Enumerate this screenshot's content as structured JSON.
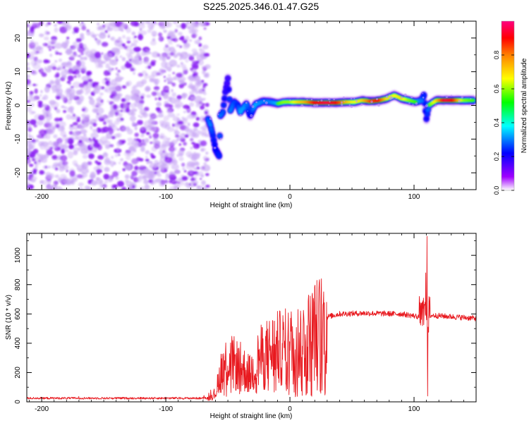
{
  "title": "S225.2025.346.01.47.G25",
  "chart_data": [
    {
      "type": "heatmap",
      "xlabel": "Height of straight line (km)",
      "ylabel": "Frequency (Hz)",
      "xlim": [
        -212,
        150
      ],
      "ylim": [
        -25,
        25
      ],
      "xticks": [
        -200,
        -100,
        0,
        100
      ],
      "xtick_labels": [
        "-200",
        "-100",
        "0",
        "100"
      ],
      "yticks": [
        -20,
        -10,
        0,
        10,
        20
      ],
      "ytick_labels": [
        "-20",
        "-10",
        "0",
        "10",
        "20"
      ],
      "noise_region_x": [
        -212,
        -66
      ],
      "ridge": [
        {
          "x": -66,
          "y": -4,
          "a": 0.45
        },
        {
          "x": -64,
          "y": -6,
          "a": 0.5
        },
        {
          "x": -62,
          "y": -9,
          "a": 0.4
        },
        {
          "x": -60,
          "y": -13,
          "a": 0.35
        },
        {
          "x": -57,
          "y": -15,
          "a": 0.4
        },
        {
          "x": -56,
          "y": -3,
          "a": 0.5
        },
        {
          "x": -54,
          "y": -2,
          "a": 0.45
        },
        {
          "x": -52,
          "y": 4,
          "a": 0.3
        },
        {
          "x": -50,
          "y": 8,
          "a": 0.25
        },
        {
          "x": -48,
          "y": -1.5,
          "a": 0.5
        },
        {
          "x": -45,
          "y": 1,
          "a": 0.45
        },
        {
          "x": -42,
          "y": 0,
          "a": 0.4
        },
        {
          "x": -40,
          "y": -2,
          "a": 0.55
        },
        {
          "x": -35,
          "y": 0.5,
          "a": 0.5
        },
        {
          "x": -32,
          "y": -3,
          "a": 0.35
        },
        {
          "x": -28,
          "y": 0.2,
          "a": 0.55
        },
        {
          "x": -22,
          "y": 1.2,
          "a": 0.5
        },
        {
          "x": -15,
          "y": 1,
          "a": 0.5
        },
        {
          "x": -10,
          "y": 0.5,
          "a": 0.55
        },
        {
          "x": -5,
          "y": 1,
          "a": 0.6
        },
        {
          "x": 0,
          "y": 1,
          "a": 0.6
        },
        {
          "x": 6,
          "y": 1,
          "a": 0.7
        },
        {
          "x": 12,
          "y": 1,
          "a": 0.75
        },
        {
          "x": 20,
          "y": 0.8,
          "a": 0.9
        },
        {
          "x": 30,
          "y": 0.8,
          "a": 0.95
        },
        {
          "x": 38,
          "y": 0.8,
          "a": 0.9
        },
        {
          "x": 45,
          "y": 1,
          "a": 0.75
        },
        {
          "x": 52,
          "y": 1,
          "a": 0.65
        },
        {
          "x": 58,
          "y": 1.5,
          "a": 0.7
        },
        {
          "x": 65,
          "y": 1.2,
          "a": 0.85
        },
        {
          "x": 72,
          "y": 1.5,
          "a": 0.9
        },
        {
          "x": 78,
          "y": 2,
          "a": 0.7
        },
        {
          "x": 84,
          "y": 3,
          "a": 0.65
        },
        {
          "x": 90,
          "y": 2,
          "a": 0.7
        },
        {
          "x": 96,
          "y": 1.5,
          "a": 0.6
        },
        {
          "x": 101,
          "y": 1,
          "a": 0.55
        },
        {
          "x": 106,
          "y": 1.5,
          "a": 0.5
        },
        {
          "x": 108,
          "y": 3,
          "a": 0.4
        },
        {
          "x": 110,
          "y": -4,
          "a": 0.35
        },
        {
          "x": 112,
          "y": 0,
          "a": 0.55
        },
        {
          "x": 118,
          "y": 1.5,
          "a": 0.7
        },
        {
          "x": 125,
          "y": 1.5,
          "a": 0.95
        },
        {
          "x": 132,
          "y": 1.5,
          "a": 0.9
        },
        {
          "x": 140,
          "y": 1.5,
          "a": 0.6
        },
        {
          "x": 148,
          "y": 1.5,
          "a": 0.55
        }
      ],
      "colorbar": {
        "label": "Normalized spectral amplitude",
        "range": [
          0,
          1
        ],
        "ticks": [
          0.0,
          0.2,
          0.4,
          0.6,
          0.8
        ],
        "tick_labels": [
          "0.0",
          "0.2",
          "0.4",
          "0.6",
          "0.8"
        ],
        "colors": [
          "#ffffff",
          "#a000ff",
          "#0000ff",
          "#00ffff",
          "#00ff00",
          "#ffff00",
          "#ff8000",
          "#ff0000",
          "#ff0080"
        ]
      }
    },
    {
      "type": "line",
      "xlabel": "Height of straight line (km)",
      "ylabel": "SNR (10 * v/v)",
      "xlim": [
        -212,
        150
      ],
      "ylim": [
        0,
        1150
      ],
      "xticks": [
        -200,
        -100,
        0,
        100
      ],
      "xtick_labels": [
        "-200",
        "-100",
        "0",
        "100"
      ],
      "yticks": [
        0,
        200,
        400,
        600,
        800,
        1000
      ],
      "ytick_labels": [
        "0",
        "200",
        "400",
        "600",
        "800",
        "1000"
      ],
      "line_color": "#e8191f",
      "series_profile": [
        {
          "x": -212,
          "y": 25
        },
        {
          "x": -66,
          "y": 25
        },
        {
          "x": -60,
          "y": 60
        },
        {
          "x": -55,
          "y": 250
        },
        {
          "x": -50,
          "y": 300
        },
        {
          "x": -40,
          "y": 260
        },
        {
          "x": -32,
          "y": 200
        },
        {
          "x": -25,
          "y": 320
        },
        {
          "x": -15,
          "y": 380
        },
        {
          "x": -5,
          "y": 400
        },
        {
          "x": 5,
          "y": 420
        },
        {
          "x": 15,
          "y": 480
        },
        {
          "x": 22,
          "y": 540
        },
        {
          "x": 30,
          "y": 580
        },
        {
          "x": 40,
          "y": 600
        },
        {
          "x": 60,
          "y": 605
        },
        {
          "x": 90,
          "y": 600
        },
        {
          "x": 105,
          "y": 580
        },
        {
          "x": 115,
          "y": 590
        },
        {
          "x": 150,
          "y": 570
        }
      ],
      "spikes": [
        {
          "x": 110.5,
          "y": 1130
        },
        {
          "x": 109.5,
          "y": 880
        },
        {
          "x": 111,
          "y": 40
        }
      ]
    }
  ]
}
